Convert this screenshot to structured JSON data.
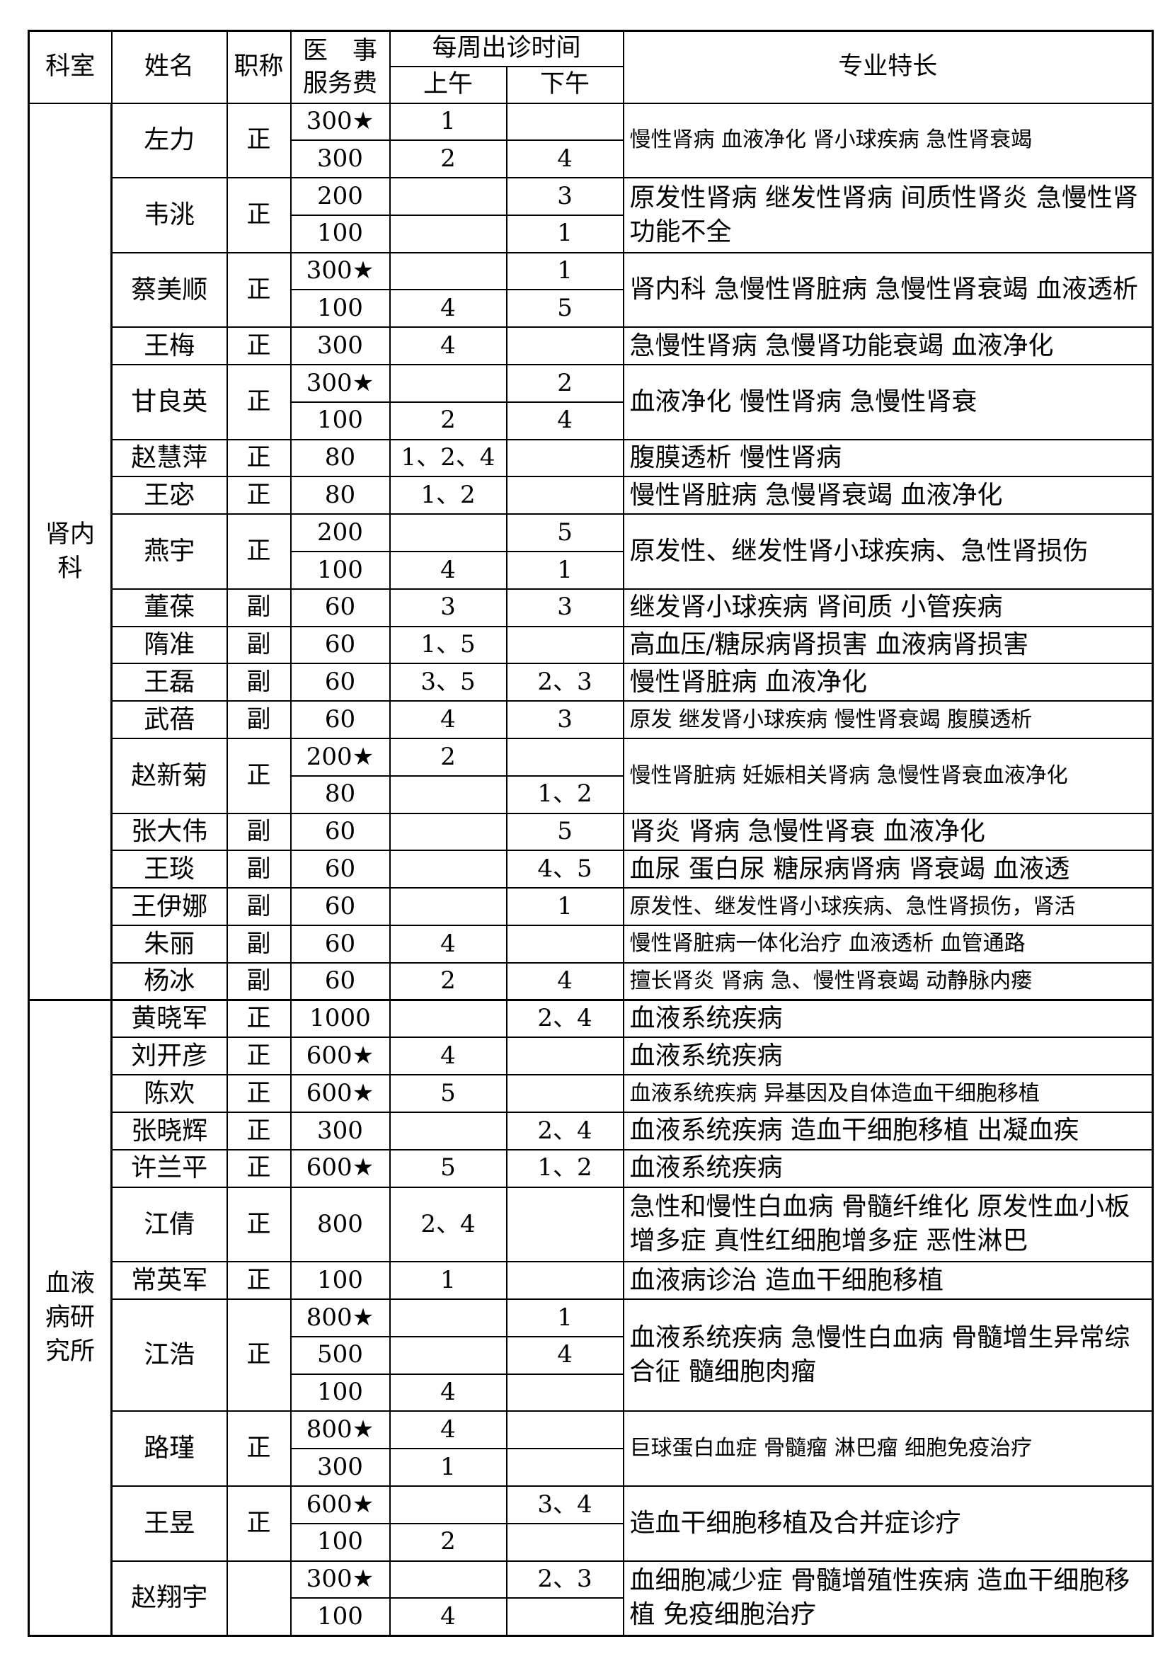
{
  "header": {
    "dept": "科室",
    "name": "姓名",
    "title": "职称",
    "fee_line1": "医　事",
    "fee_line2": "服务费",
    "schedule": "每周出诊时间",
    "am": "上午",
    "pm": "下午",
    "specialty": "专业特长"
  },
  "departments": [
    {
      "name": "肾内科",
      "doctors": [
        {
          "name": "左力",
          "title": "正",
          "slots": [
            {
              "fee": "300★",
              "am": "1",
              "pm": ""
            },
            {
              "fee": "300",
              "am": "2",
              "pm": "4"
            }
          ],
          "specialty": "慢性肾病  血液净化  肾小球疾病  急性肾衰竭"
        },
        {
          "name": "韦洮",
          "title": "正",
          "slots": [
            {
              "fee": "200",
              "am": "",
              "pm": "3"
            },
            {
              "fee": "100",
              "am": "",
              "pm": "1"
            }
          ],
          "specialty": "原发性肾病  继发性肾病  间质性肾炎  急慢性肾功能不全"
        },
        {
          "name": "蔡美顺",
          "title": "正",
          "slots": [
            {
              "fee": "300★",
              "am": "",
              "pm": "1"
            },
            {
              "fee": "100",
              "am": "4",
              "pm": "5"
            }
          ],
          "specialty": "肾内科  急慢性肾脏病  急慢性肾衰竭  血液透析"
        },
        {
          "name": "王梅",
          "title": "正",
          "slots": [
            {
              "fee": "300",
              "am": "4",
              "pm": ""
            }
          ],
          "specialty": "急慢性肾病  急慢肾功能衰竭  血液净化"
        },
        {
          "name": "甘良英",
          "title": "正",
          "slots": [
            {
              "fee": "300★",
              "am": "",
              "pm": "2"
            },
            {
              "fee": "100",
              "am": "2",
              "pm": "4"
            }
          ],
          "specialty": "血液净化  慢性肾病  急慢性肾衰"
        },
        {
          "name": "赵慧萍",
          "title": "正",
          "slots": [
            {
              "fee": "80",
              "am": "1、2、4",
              "pm": ""
            }
          ],
          "specialty": "腹膜透析  慢性肾病"
        },
        {
          "name": "王宓",
          "title": "正",
          "slots": [
            {
              "fee": "80",
              "am": "1、2",
              "pm": ""
            }
          ],
          "specialty": "慢性肾脏病  急慢肾衰竭  血液净化"
        },
        {
          "name": "燕宇",
          "title": "正",
          "slots": [
            {
              "fee": "200",
              "am": "",
              "pm": "5"
            },
            {
              "fee": "100",
              "am": "4",
              "pm": "1"
            }
          ],
          "specialty": "原发性、继发性肾小球疾病、急性肾损伤"
        },
        {
          "name": "董葆",
          "title": "副",
          "slots": [
            {
              "fee": "60",
              "am": "3",
              "pm": "3"
            }
          ],
          "specialty": "继发肾小球疾病  肾间质  小管疾病"
        },
        {
          "name": "隋准",
          "title": "副",
          "slots": [
            {
              "fee": "60",
              "am": "1、5",
              "pm": ""
            }
          ],
          "specialty": "高血压/糖尿病肾损害  血液病肾损害"
        },
        {
          "name": "王磊",
          "title": "副",
          "slots": [
            {
              "fee": "60",
              "am": "3、5",
              "pm": "2、3"
            }
          ],
          "specialty": "慢性肾脏病  血液净化"
        },
        {
          "name": "武蓓",
          "title": "副",
          "slots": [
            {
              "fee": "60",
              "am": "4",
              "pm": "3"
            }
          ],
          "specialty": "原发  继发肾小球疾病  慢性肾衰竭  腹膜透析"
        },
        {
          "name": "赵新菊",
          "title": "正",
          "slots": [
            {
              "fee": "200★",
              "am": "2",
              "pm": ""
            },
            {
              "fee": "80",
              "am": "",
              "pm": "1、2"
            }
          ],
          "specialty": "慢性肾脏病  妊娠相关肾病  急慢性肾衰血液净化"
        },
        {
          "name": "张大伟",
          "title": "副",
          "slots": [
            {
              "fee": "60",
              "am": "",
              "pm": "5"
            }
          ],
          "specialty": "肾炎  肾病  急慢性肾衰  血液净化"
        },
        {
          "name": "王琰",
          "title": "副",
          "slots": [
            {
              "fee": "60",
              "am": "",
              "pm": "4、5"
            }
          ],
          "specialty": "血尿  蛋白尿  糖尿病肾病  肾衰竭  血液透"
        },
        {
          "name": "王伊娜",
          "title": "副",
          "slots": [
            {
              "fee": "60",
              "am": "",
              "pm": "1"
            }
          ],
          "specialty": "原发性、继发性肾小球疾病、急性肾损伤，肾活"
        },
        {
          "name": "朱丽",
          "title": "副",
          "slots": [
            {
              "fee": "60",
              "am": "4",
              "pm": ""
            }
          ],
          "specialty": "慢性肾脏病一体化治疗  血液透析  血管通路"
        },
        {
          "name": "杨冰",
          "title": "副",
          "slots": [
            {
              "fee": "60",
              "am": "2",
              "pm": "4"
            }
          ],
          "specialty": "擅长肾炎  肾病  急、慢性肾衰竭  动静脉内瘘"
        }
      ]
    },
    {
      "name": "血液病研究所",
      "doctors": [
        {
          "name": "黄晓军",
          "title": "正",
          "slots": [
            {
              "fee": "1000",
              "am": "",
              "pm": "2、4"
            }
          ],
          "specialty": "血液系统疾病"
        },
        {
          "name": "刘开彦",
          "title": "正",
          "slots": [
            {
              "fee": "600★",
              "am": "4",
              "pm": ""
            }
          ],
          "specialty": "血液系统疾病"
        },
        {
          "name": "陈欢",
          "title": "正",
          "slots": [
            {
              "fee": "600★",
              "am": "5",
              "pm": ""
            }
          ],
          "specialty": "血液系统疾病  异基因及自体造血干细胞移植"
        },
        {
          "name": "张晓辉",
          "title": "正",
          "slots": [
            {
              "fee": "300",
              "am": "",
              "pm": "2、4"
            }
          ],
          "specialty": "血液系统疾病  造血干细胞移植  出凝血疾"
        },
        {
          "name": "许兰平",
          "title": "正",
          "slots": [
            {
              "fee": "600★",
              "am": "5",
              "pm": "1、2"
            }
          ],
          "specialty": "血液系统疾病"
        },
        {
          "name": "江倩",
          "title": "正",
          "slots": [
            {
              "fee": "800",
              "am": "2、4",
              "pm": ""
            }
          ],
          "specialty": "急性和慢性白血病  骨髓纤维化  原发性血小板增多症  真性红细胞增多症  恶性淋巴"
        },
        {
          "name": "常英军",
          "title": "正",
          "slots": [
            {
              "fee": "100",
              "am": "1",
              "pm": ""
            }
          ],
          "specialty": "血液病诊治  造血干细胞移植"
        },
        {
          "name": "江浩",
          "title": "正",
          "slots": [
            {
              "fee": "800★",
              "am": "",
              "pm": "1"
            },
            {
              "fee": "500",
              "am": "",
              "pm": "4"
            },
            {
              "fee": "100",
              "am": "4",
              "pm": ""
            }
          ],
          "specialty": "血液系统疾病  急慢性白血病  骨髓增生异常综合征  髓细胞肉瘤"
        },
        {
          "name": "路瑾",
          "title": "正",
          "slots": [
            {
              "fee": "800★",
              "am": "4",
              "pm": ""
            },
            {
              "fee": "300",
              "am": "1",
              "pm": ""
            }
          ],
          "specialty": "巨球蛋白血症  骨髓瘤  淋巴瘤  细胞免疫治疗"
        },
        {
          "name": "王昱",
          "title": "正",
          "slots": [
            {
              "fee": "600★",
              "am": "",
              "pm": "3、4"
            },
            {
              "fee": "100",
              "am": "2",
              "pm": ""
            }
          ],
          "specialty": "造血干细胞移植及合并症诊疗"
        },
        {
          "name": "赵翔宇",
          "title": "",
          "slots": [
            {
              "fee": "300★",
              "am": "",
              "pm": "2、3"
            },
            {
              "fee": "100",
              "am": "4",
              "pm": ""
            }
          ],
          "specialty": "血细胞减少症  骨髓增殖性疾病  造血干细胞移植  免疫细胞治疗"
        }
      ]
    }
  ]
}
